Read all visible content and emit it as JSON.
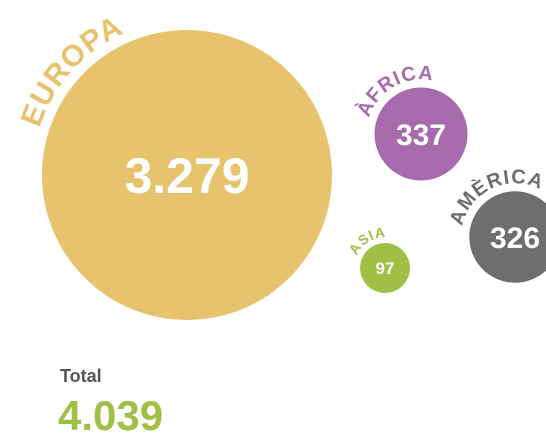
{
  "chart_data": {
    "type": "bubble",
    "categories": [
      "EUROPA",
      "ÀFRICA",
      "AMÈRICA",
      "ASIA"
    ],
    "values": [
      3279,
      337,
      326,
      97
    ],
    "value_labels": [
      "3.279",
      "337",
      "326",
      "97"
    ],
    "colors": [
      "#e8c36e",
      "#a66aad",
      "#6e6e6e",
      "#a0bf45"
    ],
    "total": {
      "name": "Total",
      "value": 4039,
      "value_label": "4.039"
    }
  }
}
